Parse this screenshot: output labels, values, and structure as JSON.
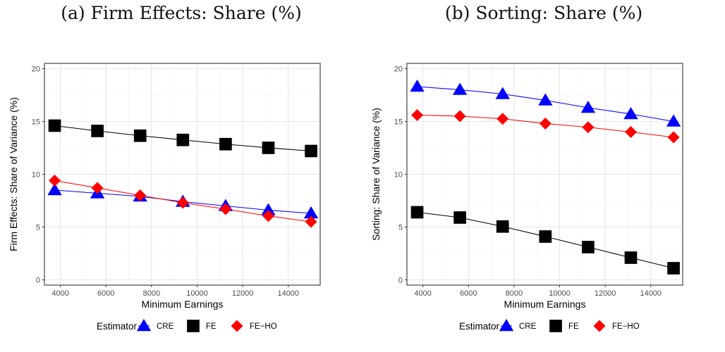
{
  "panels": [
    {
      "title": "(a) Firm Effects: Share (%)"
    },
    {
      "title": "(b) Sorting: Share (%)"
    }
  ],
  "colors": {
    "CRE": "#0000ff",
    "FE": "#000000",
    "FE-HO": "#ff0000"
  },
  "chart_data": [
    {
      "type": "line",
      "title": "(a) Firm Effects: Share (%)",
      "xlabel": "Minimum Earnings",
      "ylabel": "Firm Effects: Share of Variance (%)",
      "xlim": [
        3300,
        15400
      ],
      "ylim": [
        -0.5,
        20.5
      ],
      "xticks": [
        4000,
        6000,
        8000,
        10000,
        12000,
        14000
      ],
      "yticks": [
        0,
        5,
        10,
        15,
        20
      ],
      "grid": true,
      "legend_position": "bottom",
      "legend_title": "Estimator",
      "x": [
        3750,
        5625,
        7500,
        9375,
        11250,
        13125,
        15000
      ],
      "series": [
        {
          "name": "CRE",
          "marker": "triangle",
          "values": [
            8.5,
            8.2,
            7.9,
            7.4,
            7.0,
            6.6,
            6.3
          ]
        },
        {
          "name": "FE",
          "marker": "square",
          "values": [
            14.6,
            14.1,
            13.65,
            13.25,
            12.85,
            12.5,
            12.2
          ]
        },
        {
          "name": "FE−HO",
          "marker": "diamond",
          "values": [
            9.4,
            8.7,
            8.0,
            7.3,
            6.7,
            6.05,
            5.5
          ]
        }
      ]
    },
    {
      "type": "line",
      "title": "(b) Sorting: Share (%)",
      "xlabel": "Minimum Earnings",
      "ylabel": "Sorting: Share of Variance (%)",
      "xlim": [
        3300,
        15400
      ],
      "ylim": [
        -0.5,
        20.5
      ],
      "xticks": [
        4000,
        6000,
        8000,
        10000,
        12000,
        14000
      ],
      "yticks": [
        0,
        5,
        10,
        15,
        20
      ],
      "grid": true,
      "legend_position": "bottom",
      "legend_title": "Estimator",
      "x": [
        3750,
        5625,
        7500,
        9375,
        11250,
        13125,
        15000
      ],
      "series": [
        {
          "name": "CRE",
          "marker": "triangle",
          "values": [
            18.3,
            18.0,
            17.6,
            17.0,
            16.3,
            15.7,
            15.0
          ]
        },
        {
          "name": "FE",
          "marker": "square",
          "values": [
            6.4,
            5.9,
            5.05,
            4.1,
            3.1,
            2.1,
            1.1
          ]
        },
        {
          "name": "FE−HO",
          "marker": "diamond",
          "values": [
            15.6,
            15.5,
            15.25,
            14.8,
            14.45,
            14.0,
            13.5
          ]
        }
      ]
    }
  ]
}
